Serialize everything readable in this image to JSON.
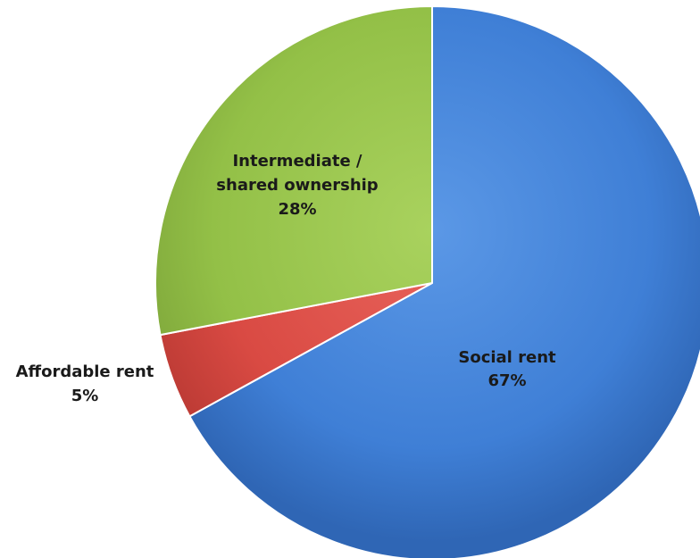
{
  "chart_data": {
    "type": "pie",
    "title": "",
    "start_angle_deg": 0,
    "direction": "clockwise",
    "legend": "none",
    "slices": [
      {
        "label": "Social rent",
        "value": 67,
        "display": "67%",
        "color": "#3f7fd6",
        "color_light": "#5b98e6",
        "color_dark": "#2f66b5"
      },
      {
        "label": "Affordable rent",
        "value": 5,
        "display": "5%",
        "color": "#d94a43",
        "color_light": "#e9645c",
        "color_dark": "#bb3a34"
      },
      {
        "label": "Intermediate / shared ownership",
        "value": 28,
        "display": "28%",
        "color": "#93c047",
        "color_light": "#a9d25e",
        "color_dark": "#7ea63a"
      }
    ]
  }
}
